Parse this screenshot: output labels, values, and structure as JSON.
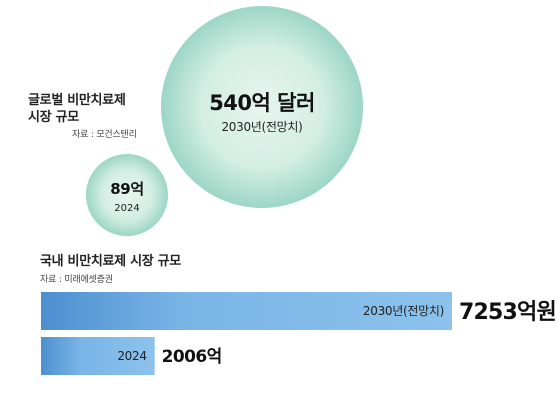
{
  "chart_data": [
    {
      "type": "bubble",
      "title": "글로벌 비만치료제\n시장 규모",
      "source": "자료 : 모건스탠리",
      "unit": "억 달러",
      "points": [
        {
          "label": "2030년(전망치)",
          "value": 540,
          "value_label": "540억 달러"
        },
        {
          "label": "2024",
          "value": 89,
          "value_label": "89억"
        }
      ]
    },
    {
      "type": "bar",
      "orientation": "horizontal",
      "title": "국내 비만치료제 시장 규모",
      "source": "자료 : 미래에셋증권",
      "unit": "억원",
      "categories": [
        "2030년(전망치)",
        "2024"
      ],
      "values": [
        7253,
        2006
      ],
      "value_labels": [
        "7253억원",
        "2006억"
      ]
    }
  ],
  "colors": {
    "bubble_center": "#e6f5ef",
    "bubble_edge": "#9cd6c4",
    "bar_dark": "#4c8fd0",
    "bar_light": "#8cc2ec"
  }
}
